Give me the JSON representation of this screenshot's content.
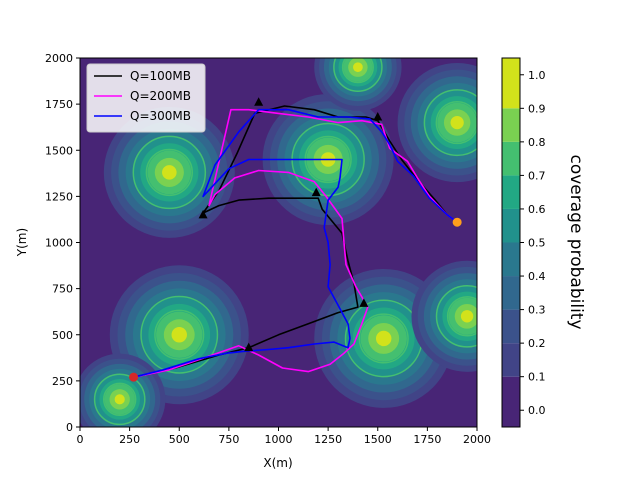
{
  "chart_data": {
    "type": "heatmap",
    "title": "",
    "xlabel": "X(m)",
    "ylabel": "Y(m)",
    "xlim": [
      0,
      2000
    ],
    "ylim": [
      0,
      2000
    ],
    "xticks": [
      0,
      250,
      500,
      750,
      1000,
      1250,
      1500,
      1750,
      2000
    ],
    "yticks": [
      0,
      250,
      500,
      750,
      1000,
      1250,
      1500,
      1750,
      2000
    ],
    "grid": false,
    "legend_position": "upper-left",
    "colorbar": {
      "label": "coverage probability",
      "ticks": [
        0.0,
        0.1,
        0.2,
        0.3,
        0.4,
        0.5,
        0.6,
        0.7,
        0.8,
        0.9,
        1.0
      ],
      "levels": [
        {
          "low": -0.05,
          "high": 0.1,
          "color": "#482576"
        },
        {
          "low": 0.1,
          "high": 0.2,
          "color": "#414487"
        },
        {
          "low": 0.2,
          "high": 0.3,
          "color": "#3b528b"
        },
        {
          "low": 0.3,
          "high": 0.4,
          "color": "#31688e"
        },
        {
          "low": 0.4,
          "high": 0.5,
          "color": "#2a788e"
        },
        {
          "low": 0.5,
          "high": 0.6,
          "color": "#21918c"
        },
        {
          "low": 0.6,
          "high": 0.7,
          "color": "#22a884"
        },
        {
          "low": 0.7,
          "high": 0.8,
          "color": "#44bf70"
        },
        {
          "low": 0.8,
          "high": 0.9,
          "color": "#7ad151"
        },
        {
          "low": 0.9,
          "high": 1.05,
          "color": "#d2e21b"
        }
      ]
    },
    "coverage_hotspots": [
      {
        "x": 450,
        "y": 1380,
        "radius": 330
      },
      {
        "x": 1250,
        "y": 1450,
        "radius": 330
      },
      {
        "x": 500,
        "y": 500,
        "radius": 350
      },
      {
        "x": 1530,
        "y": 480,
        "radius": 350
      },
      {
        "x": 1900,
        "y": 1650,
        "radius": 300
      },
      {
        "x": 1950,
        "y": 600,
        "radius": 280
      },
      {
        "x": 1400,
        "y": 1950,
        "radius": 220
      },
      {
        "x": 200,
        "y": 150,
        "radius": 230
      }
    ],
    "base_stations": [
      {
        "x": 620,
        "y": 1150
      },
      {
        "x": 900,
        "y": 1760
      },
      {
        "x": 1500,
        "y": 1680
      },
      {
        "x": 1190,
        "y": 1270
      },
      {
        "x": 1430,
        "y": 670
      },
      {
        "x": 850,
        "y": 430
      }
    ],
    "start_point": {
      "x": 270,
      "y": 270,
      "color": "#d62728"
    },
    "end_point": {
      "x": 1900,
      "y": 1110,
      "color": "#ff9f1c"
    },
    "series": [
      {
        "name": "Q=100MB",
        "color": "#000000",
        "points": [
          [
            270,
            270
          ],
          [
            480,
            320
          ],
          [
            700,
            390
          ],
          [
            850,
            430
          ],
          [
            1000,
            500
          ],
          [
            1150,
            560
          ],
          [
            1300,
            620
          ],
          [
            1400,
            650
          ],
          [
            1380,
            780
          ],
          [
            1350,
            900
          ],
          [
            1320,
            1050
          ],
          [
            1220,
            1180
          ],
          [
            1200,
            1240
          ],
          [
            950,
            1240
          ],
          [
            800,
            1230
          ],
          [
            700,
            1200
          ],
          [
            620,
            1160
          ],
          [
            700,
            1280
          ],
          [
            790,
            1480
          ],
          [
            880,
            1700
          ],
          [
            1030,
            1740
          ],
          [
            1180,
            1720
          ],
          [
            1300,
            1680
          ],
          [
            1440,
            1680
          ],
          [
            1500,
            1660
          ],
          [
            1560,
            1550
          ],
          [
            1620,
            1450
          ],
          [
            1700,
            1340
          ],
          [
            1790,
            1230
          ],
          [
            1850,
            1150
          ],
          [
            1900,
            1110
          ]
        ]
      },
      {
        "name": "Q=200MB",
        "color": "#ff00ff",
        "points": [
          [
            270,
            270
          ],
          [
            450,
            310
          ],
          [
            640,
            380
          ],
          [
            800,
            440
          ],
          [
            900,
            390
          ],
          [
            1020,
            320
          ],
          [
            1150,
            300
          ],
          [
            1260,
            340
          ],
          [
            1330,
            400
          ],
          [
            1380,
            450
          ],
          [
            1420,
            560
          ],
          [
            1450,
            650
          ],
          [
            1390,
            760
          ],
          [
            1340,
            880
          ],
          [
            1330,
            1000
          ],
          [
            1320,
            1130
          ],
          [
            1240,
            1250
          ],
          [
            1180,
            1330
          ],
          [
            1050,
            1380
          ],
          [
            900,
            1390
          ],
          [
            780,
            1350
          ],
          [
            680,
            1260
          ],
          [
            650,
            1200
          ],
          [
            760,
            1720
          ],
          [
            850,
            1720
          ],
          [
            1000,
            1700
          ],
          [
            1150,
            1680
          ],
          [
            1300,
            1650
          ],
          [
            1420,
            1660
          ],
          [
            1520,
            1640
          ],
          [
            1560,
            1510
          ],
          [
            1650,
            1440
          ],
          [
            1700,
            1350
          ],
          [
            1760,
            1250
          ],
          [
            1850,
            1150
          ],
          [
            1900,
            1110
          ]
        ]
      },
      {
        "name": "Q=300MB",
        "color": "#0000ff",
        "points": [
          [
            270,
            270
          ],
          [
            420,
            310
          ],
          [
            600,
            370
          ],
          [
            740,
            400
          ],
          [
            820,
            410
          ],
          [
            950,
            420
          ],
          [
            1050,
            430
          ],
          [
            1180,
            450
          ],
          [
            1280,
            460
          ],
          [
            1350,
            430
          ],
          [
            1360,
            480
          ],
          [
            1350,
            560
          ],
          [
            1300,
            660
          ],
          [
            1250,
            760
          ],
          [
            1260,
            880
          ],
          [
            1250,
            1000
          ],
          [
            1230,
            1080
          ],
          [
            1250,
            1230
          ],
          [
            1300,
            1300
          ],
          [
            1310,
            1350
          ],
          [
            1320,
            1450
          ],
          [
            1250,
            1450
          ],
          [
            1050,
            1450
          ],
          [
            850,
            1450
          ],
          [
            750,
            1400
          ],
          [
            620,
            1250
          ],
          [
            680,
            1420
          ],
          [
            800,
            1600
          ],
          [
            900,
            1720
          ],
          [
            1050,
            1720
          ],
          [
            1200,
            1680
          ],
          [
            1350,
            1680
          ],
          [
            1460,
            1670
          ],
          [
            1520,
            1600
          ],
          [
            1560,
            1530
          ],
          [
            1600,
            1440
          ],
          [
            1680,
            1360
          ],
          [
            1760,
            1240
          ],
          [
            1850,
            1150
          ],
          [
            1900,
            1110
          ]
        ]
      }
    ]
  }
}
